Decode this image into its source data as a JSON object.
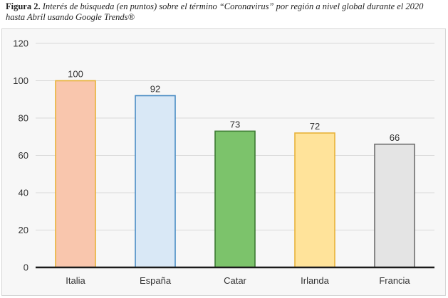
{
  "caption": {
    "label": "Figura 2.",
    "text": "Interés de búsqueda (en puntos) sobre el término “Coronavirus” por región a nivel global durante el 2020 hasta Abril usando Google Trends®"
  },
  "chart_data": {
    "type": "bar",
    "title": "",
    "xlabel": "",
    "ylabel": "",
    "categories": [
      "Italia",
      "España",
      "Catar",
      "Irlanda",
      "Francia"
    ],
    "values": [
      100,
      92,
      73,
      72,
      66
    ],
    "data_labels": [
      "100",
      "92",
      "73",
      "72",
      "66"
    ],
    "ylim": [
      0,
      120
    ],
    "yticks": [
      0,
      20,
      40,
      60,
      80,
      100,
      120
    ],
    "grid": true,
    "legend": "none",
    "bar_fills": [
      "#f9c6ad",
      "#d9e8f6",
      "#7cc36b",
      "#ffe39a",
      "#e4e4e4"
    ],
    "bar_borders": [
      "#e8b23a",
      "#4a8cc4",
      "#3d7a33",
      "#e8b23a",
      "#6e6e6e"
    ]
  }
}
